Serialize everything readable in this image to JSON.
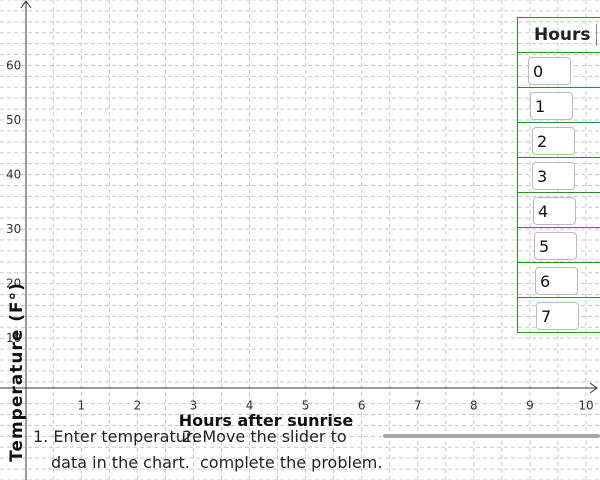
{
  "graph": {
    "x_axis_title": "Hours after sunrise",
    "y_axis_title": "Temperature (F°)",
    "x_ticks": [
      "1",
      "2",
      "3",
      "4",
      "5",
      "6",
      "7",
      "8",
      "9",
      "10"
    ],
    "y_ticks": [
      "10",
      "20",
      "30",
      "40",
      "50",
      "60"
    ],
    "x_range": [
      -0.45,
      10.25
    ],
    "y_range": [
      -16,
      72
    ],
    "grid": true
  },
  "table": {
    "header": "Hours",
    "rows": [
      "0",
      "1",
      "2",
      "3",
      "4",
      "5",
      "6",
      "7"
    ]
  },
  "instructions": {
    "step1_line1": "1. Enter temperature",
    "step1_line2": "data in the chart.",
    "step2_line1": "2. Move the slider to",
    "step2_line2": "complete the problem."
  },
  "colors": {
    "grid": "#c8c8c8",
    "axis": "#333333",
    "table_border": "#2e8b2e",
    "slider": "#a8a8a8"
  }
}
